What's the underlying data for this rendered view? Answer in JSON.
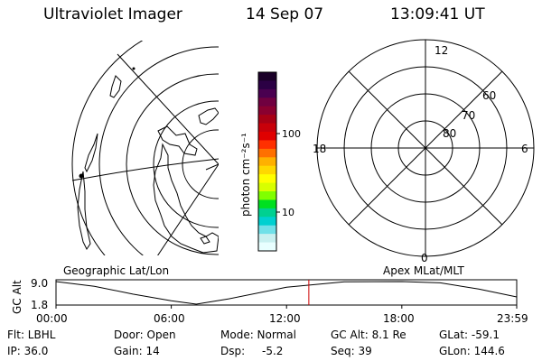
{
  "header": {
    "title": "Ultraviolet Imager",
    "date": "14 Sep 07",
    "time": "13:09:41 UT"
  },
  "colorbar": {
    "label": "photon cm⁻²s⁻¹",
    "tick_labels": [
      "100",
      "10"
    ],
    "colors": [
      "#1a0028",
      "#2b0044",
      "#4a0050",
      "#700040",
      "#8a0030",
      "#a80015",
      "#c8000a",
      "#e00000",
      "#ff3000",
      "#ff7000",
      "#ffb000",
      "#ffd800",
      "#ffff00",
      "#d8ff00",
      "#80ff00",
      "#00e020",
      "#00d090",
      "#00d0d0",
      "#70e0e8",
      "#c8f0f0",
      "#e8ffff"
    ]
  },
  "polar": {
    "lat_labels": [
      "60",
      "70",
      "80"
    ],
    "mlt_labels": {
      "top": "12",
      "left": "18",
      "right": "6",
      "bottom": "0"
    }
  },
  "panels": {
    "left_caption": "Geographic Lat/Lon",
    "right_caption": "Apex MLat/MLT"
  },
  "altitude_plot": {
    "y_axis_label": "GC Alt",
    "y_ticks": [
      "9.0",
      "1.8"
    ],
    "x_ticks": [
      "00:00",
      "06:00",
      "12:00",
      "18:00",
      "23:59"
    ],
    "marker_color": "#cc0000"
  },
  "chart_data": {
    "type": "line",
    "ylabel": "GC Alt",
    "x": [
      0,
      2,
      4,
      6,
      7.3,
      9,
      12,
      15,
      18,
      20,
      22,
      23.98
    ],
    "values": [
      9.0,
      7.5,
      5.0,
      2.9,
      1.8,
      3.5,
      7.2,
      8.9,
      9.0,
      8.6,
      6.6,
      4.1
    ],
    "ylim": [
      1.8,
      9.0
    ],
    "xlim": [
      0,
      23.98
    ],
    "marker_x": 13.16
  },
  "status": {
    "flt": "Flt: LBHL",
    "door": "Door: Open",
    "mode": "Mode: Normal",
    "gc_alt": "GC Alt: 8.1 Re",
    "glat": "GLat: -59.1",
    "ip": "IP: 36.0",
    "gain": "Gain: 14",
    "dsp_label": "Dsp:",
    "dsp_value": "-5.2",
    "seq": "Seq: 39",
    "glon": "GLon: 144.6"
  }
}
